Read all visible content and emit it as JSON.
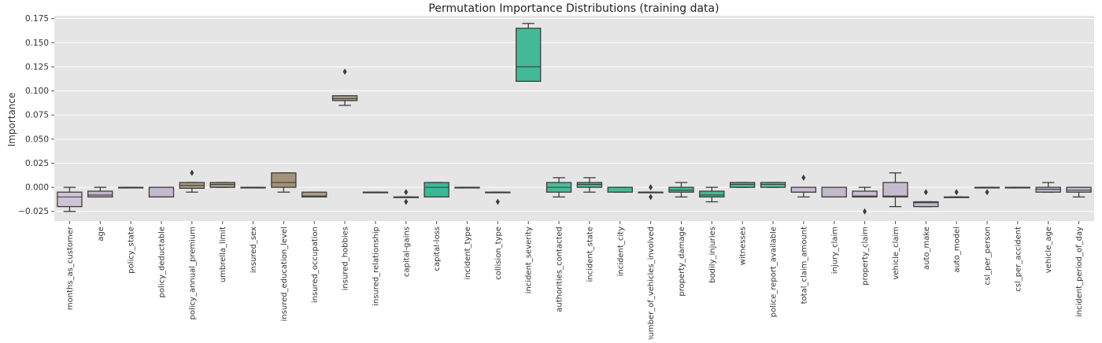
{
  "chart_data": {
    "type": "box",
    "title": "Permutation Importance Distributions (training data)",
    "xlabel": "",
    "ylabel": "Importance",
    "ylim": [
      -0.035,
      0.178
    ],
    "yticks": [
      -0.025,
      0.0,
      0.025,
      0.05,
      0.075,
      0.1,
      0.125,
      0.15,
      0.175
    ],
    "ytick_labels": [
      "−0.025",
      "0.000",
      "0.025",
      "0.050",
      "0.075",
      "0.100",
      "0.125",
      "0.150",
      "0.175"
    ],
    "grid": true,
    "background": "#e5e5e5",
    "grid_color": "#ffffff",
    "categories": [
      "months_as_customer",
      "age",
      "policy_state",
      "policy_deductable",
      "policy_annual_premium",
      "umbrella_limit",
      "insured_sex",
      "insured_education_level",
      "insured_occupation",
      "insured_hobbies",
      "insured_relationship",
      "capital-gains",
      "capital-loss",
      "incident_type",
      "collision_type",
      "incident_severity",
      "authorities_contacted",
      "incident_state",
      "incident_city",
      "number_of_vehicles_involved",
      "property_damage",
      "bodily_injuries",
      "witnesses",
      "police_report_available",
      "total_claim_amount",
      "injury_claim",
      "property_claim",
      "vehicle_claim",
      "auto_make",
      "auto_model",
      "csl_per_person",
      "csl_per_accident",
      "vehicle_age",
      "incident_period_of_day"
    ],
    "boxes": [
      {
        "whislo": -0.025,
        "q1": -0.02,
        "med": -0.01,
        "q3": -0.005,
        "whishi": 0.0,
        "fliers": [],
        "color": "#cfc3d6"
      },
      {
        "whislo": -0.01,
        "q1": -0.01,
        "med": -0.008,
        "q3": -0.004,
        "whishi": 0.0,
        "fliers": [],
        "color": "#c2b8cb"
      },
      {
        "whislo": 0.0,
        "q1": 0.0,
        "med": 0.0,
        "q3": 0.0,
        "whishi": 0.0,
        "fliers": [],
        "color": "#d5cde0"
      },
      {
        "whislo": -0.01,
        "q1": -0.01,
        "med": -0.01,
        "q3": 0.0,
        "whishi": 0.0,
        "fliers": [],
        "color": "#c4b9cc"
      },
      {
        "whislo": -0.005,
        "q1": -0.001,
        "med": 0.002,
        "q3": 0.005,
        "whishi": 0.005,
        "fliers": [
          0.015
        ],
        "color": "#ab9a80"
      },
      {
        "whislo": 0.0,
        "q1": 0.0,
        "med": 0.003,
        "q3": 0.005,
        "whishi": 0.005,
        "fliers": [],
        "color": "#a59b86"
      },
      {
        "whislo": 0.0,
        "q1": 0.0,
        "med": 0.0,
        "q3": 0.0,
        "whishi": 0.0,
        "fliers": [],
        "color": "#ad9f8c"
      },
      {
        "whislo": -0.005,
        "q1": 0.0,
        "med": 0.005,
        "q3": 0.015,
        "whishi": 0.015,
        "fliers": [],
        "color": "#a3917a"
      },
      {
        "whislo": -0.01,
        "q1": -0.01,
        "med": -0.009,
        "q3": -0.005,
        "whishi": -0.005,
        "fliers": [],
        "color": "#ad9e88"
      },
      {
        "whislo": 0.085,
        "q1": 0.09,
        "med": 0.092,
        "q3": 0.095,
        "whishi": 0.095,
        "fliers": [
          0.12
        ],
        "color": "#a69c8b"
      },
      {
        "whislo": -0.005,
        "q1": -0.005,
        "med": -0.005,
        "q3": -0.005,
        "whishi": -0.005,
        "fliers": [],
        "color": "#a79d8c"
      },
      {
        "whislo": -0.01,
        "q1": -0.01,
        "med": -0.01,
        "q3": -0.01,
        "whishi": -0.01,
        "fliers": [
          -0.005,
          -0.015
        ],
        "color": "#5bbfa0"
      },
      {
        "whislo": -0.01,
        "q1": -0.01,
        "med": 0.0,
        "q3": 0.005,
        "whishi": 0.005,
        "fliers": [],
        "color": "#3db796"
      },
      {
        "whislo": 0.0,
        "q1": 0.0,
        "med": 0.0,
        "q3": 0.0,
        "whishi": 0.0,
        "fliers": [],
        "color": "#5ec0a2"
      },
      {
        "whislo": -0.005,
        "q1": -0.005,
        "med": -0.005,
        "q3": -0.005,
        "whishi": -0.005,
        "fliers": [
          -0.015
        ],
        "color": "#52bc9c"
      },
      {
        "whislo": 0.11,
        "q1": 0.11,
        "med": 0.125,
        "q3": 0.165,
        "whishi": 0.17,
        "fliers": [],
        "color": "#45b898"
      },
      {
        "whislo": -0.01,
        "q1": -0.005,
        "med": 0.0,
        "q3": 0.005,
        "whishi": 0.01,
        "fliers": [],
        "color": "#4cba99"
      },
      {
        "whislo": -0.005,
        "q1": 0.0,
        "med": 0.003,
        "q3": 0.005,
        "whishi": 0.01,
        "fliers": [],
        "color": "#45b898"
      },
      {
        "whislo": -0.005,
        "q1": -0.005,
        "med": 0.0,
        "q3": 0.0,
        "whishi": 0.0,
        "fliers": [],
        "color": "#4ab999"
      },
      {
        "whislo": -0.005,
        "q1": -0.005,
        "med": -0.005,
        "q3": -0.005,
        "whishi": -0.005,
        "fliers": [
          0.0,
          -0.01
        ],
        "color": "#53bc9d"
      },
      {
        "whislo": -0.01,
        "q1": -0.005,
        "med": -0.003,
        "q3": 0.0,
        "whishi": 0.005,
        "fliers": [],
        "color": "#49b998"
      },
      {
        "whislo": -0.015,
        "q1": -0.01,
        "med": -0.008,
        "q3": -0.004,
        "whishi": 0.0,
        "fliers": [],
        "color": "#47b897"
      },
      {
        "whislo": 0.0,
        "q1": 0.0,
        "med": 0.003,
        "q3": 0.005,
        "whishi": 0.005,
        "fliers": [],
        "color": "#4eba9a"
      },
      {
        "whislo": 0.0,
        "q1": 0.0,
        "med": 0.003,
        "q3": 0.005,
        "whishi": 0.005,
        "fliers": [],
        "color": "#58be9f"
      },
      {
        "whislo": -0.01,
        "q1": -0.005,
        "med": -0.005,
        "q3": 0.0,
        "whishi": 0.0,
        "fliers": [
          0.01
        ],
        "color": "#c6bdcf"
      },
      {
        "whislo": -0.01,
        "q1": -0.01,
        "med": -0.01,
        "q3": 0.0,
        "whishi": 0.0,
        "fliers": [],
        "color": "#c3b9cb"
      },
      {
        "whislo": -0.01,
        "q1": -0.01,
        "med": -0.009,
        "q3": -0.004,
        "whishi": 0.0,
        "fliers": [
          -0.025
        ],
        "color": "#c8bed2"
      },
      {
        "whislo": -0.02,
        "q1": -0.01,
        "med": -0.009,
        "q3": 0.005,
        "whishi": 0.015,
        "fliers": [],
        "color": "#c5bcce"
      },
      {
        "whislo": -0.02,
        "q1": -0.02,
        "med": -0.016,
        "q3": -0.015,
        "whishi": -0.015,
        "fliers": [
          -0.005
        ],
        "color": "#c3b9cb"
      },
      {
        "whislo": -0.01,
        "q1": -0.01,
        "med": -0.01,
        "q3": -0.01,
        "whishi": -0.01,
        "fliers": [
          -0.005
        ],
        "color": "#c2b8ca"
      },
      {
        "whislo": 0.0,
        "q1": 0.0,
        "med": 0.0,
        "q3": 0.0,
        "whishi": 0.0,
        "fliers": [
          -0.005
        ],
        "color": "#c9c0d2"
      },
      {
        "whislo": 0.0,
        "q1": 0.0,
        "med": 0.0,
        "q3": 0.0,
        "whishi": 0.0,
        "fliers": [],
        "color": "#cbc3d4"
      },
      {
        "whislo": -0.005,
        "q1": -0.005,
        "med": -0.002,
        "q3": 0.0,
        "whishi": 0.005,
        "fliers": [],
        "color": "#c1b7c9"
      },
      {
        "whislo": -0.01,
        "q1": -0.005,
        "med": -0.003,
        "q3": 0.0,
        "whishi": 0.0,
        "fliers": [],
        "color": "#c4bacd"
      }
    ]
  }
}
